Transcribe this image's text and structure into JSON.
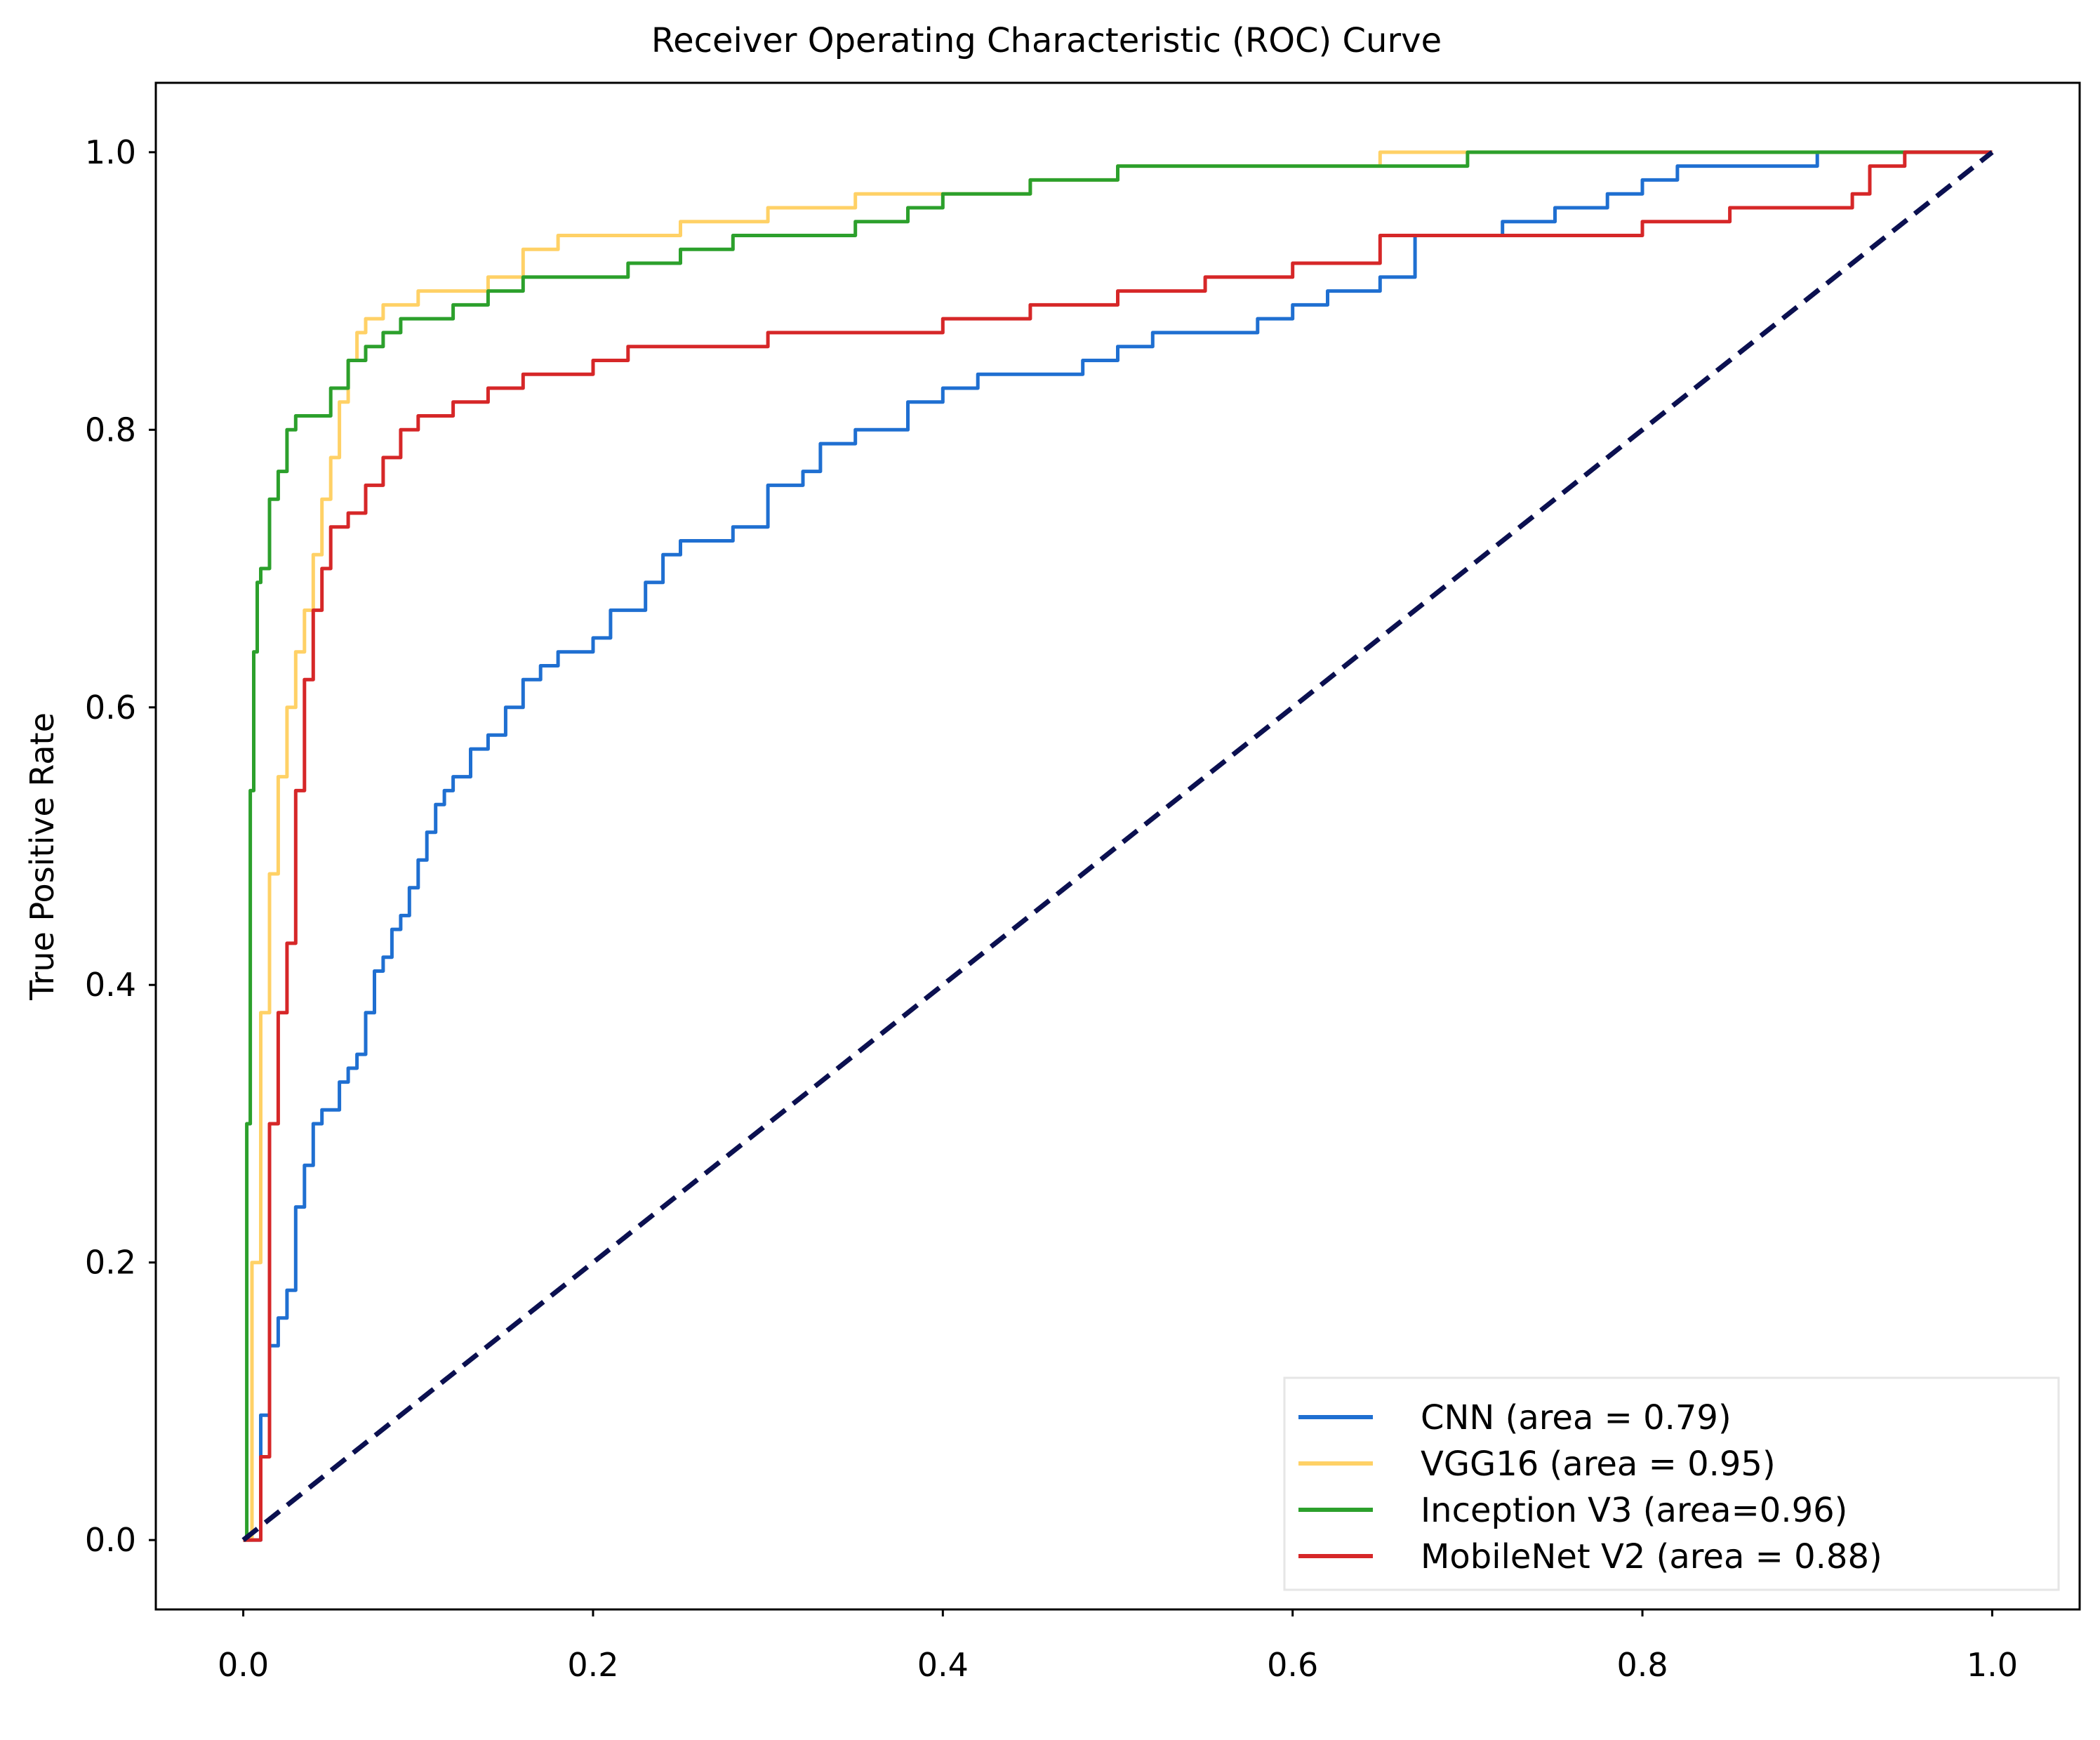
{
  "chart_data": {
    "type": "line",
    "title": "Receiver Operating Characteristic (ROC) Curve",
    "xlabel": "",
    "ylabel": "True Positive Rate",
    "xlim": [
      -0.05,
      1.05
    ],
    "ylim": [
      -0.05,
      1.05
    ],
    "xticks": [
      0.0,
      0.2,
      0.4,
      0.6,
      0.8,
      1.0
    ],
    "yticks": [
      0.0,
      0.2,
      0.4,
      0.6,
      0.8,
      1.0
    ],
    "xtick_labels": [
      "0.0",
      "0.2",
      "0.4",
      "0.6",
      "0.8",
      "1.0"
    ],
    "ytick_labels": [
      "0.0",
      "0.2",
      "0.4",
      "0.6",
      "0.8",
      "1.0"
    ],
    "grid": false,
    "legend_position": "bottom-right",
    "diagonal": {
      "color": "#0b1050",
      "style": "dashed",
      "x": [
        0,
        1
      ],
      "y": [
        0,
        1
      ]
    },
    "series": [
      {
        "name": "CNN (area = 0.79)",
        "color": "#1f6fd1",
        "x": [
          0,
          0.01,
          0.015,
          0.02,
          0.025,
          0.03,
          0.035,
          0.04,
          0.045,
          0.05,
          0.055,
          0.06,
          0.065,
          0.07,
          0.075,
          0.08,
          0.085,
          0.09,
          0.095,
          0.1,
          0.105,
          0.11,
          0.115,
          0.12,
          0.13,
          0.14,
          0.15,
          0.16,
          0.17,
          0.18,
          0.19,
          0.2,
          0.21,
          0.22,
          0.23,
          0.24,
          0.25,
          0.26,
          0.28,
          0.3,
          0.31,
          0.32,
          0.33,
          0.35,
          0.36,
          0.38,
          0.4,
          0.42,
          0.45,
          0.48,
          0.5,
          0.52,
          0.55,
          0.58,
          0.6,
          0.62,
          0.65,
          0.67,
          0.7,
          0.72,
          0.75,
          0.78,
          0.8,
          0.82,
          0.85,
          0.9,
          0.95,
          1.0
        ],
        "y": [
          0,
          0.09,
          0.14,
          0.16,
          0.18,
          0.24,
          0.27,
          0.3,
          0.31,
          0.31,
          0.33,
          0.34,
          0.35,
          0.38,
          0.41,
          0.42,
          0.44,
          0.45,
          0.47,
          0.49,
          0.51,
          0.53,
          0.54,
          0.55,
          0.57,
          0.58,
          0.6,
          0.62,
          0.63,
          0.64,
          0.64,
          0.65,
          0.67,
          0.67,
          0.69,
          0.71,
          0.72,
          0.72,
          0.73,
          0.76,
          0.76,
          0.77,
          0.79,
          0.8,
          0.8,
          0.82,
          0.83,
          0.84,
          0.84,
          0.85,
          0.86,
          0.87,
          0.87,
          0.88,
          0.89,
          0.9,
          0.91,
          0.94,
          0.94,
          0.95,
          0.96,
          0.97,
          0.98,
          0.99,
          0.99,
          1.0,
          1.0,
          1.0
        ]
      },
      {
        "name": "VGG16 (area = 0.95)",
        "color": "#ffd166",
        "x": [
          0,
          0.005,
          0.01,
          0.015,
          0.02,
          0.025,
          0.03,
          0.035,
          0.04,
          0.045,
          0.05,
          0.055,
          0.06,
          0.065,
          0.07,
          0.08,
          0.09,
          0.1,
          0.12,
          0.14,
          0.16,
          0.18,
          0.2,
          0.25,
          0.3,
          0.35,
          0.4,
          0.45,
          0.5,
          0.55,
          0.6,
          0.65,
          0.7,
          0.75,
          0.8,
          0.9,
          1.0
        ],
        "y": [
          0,
          0.2,
          0.38,
          0.48,
          0.55,
          0.6,
          0.64,
          0.67,
          0.71,
          0.75,
          0.78,
          0.82,
          0.85,
          0.87,
          0.88,
          0.89,
          0.89,
          0.9,
          0.9,
          0.91,
          0.93,
          0.94,
          0.94,
          0.95,
          0.96,
          0.97,
          0.97,
          0.98,
          0.99,
          0.99,
          0.99,
          1.0,
          1.0,
          1.0,
          1.0,
          1.0,
          1.0
        ]
      },
      {
        "name": "Inception V3 (area=0.96)",
        "color": "#2ca02c",
        "x": [
          0,
          0.002,
          0.004,
          0.006,
          0.008,
          0.01,
          0.015,
          0.02,
          0.025,
          0.03,
          0.04,
          0.05,
          0.06,
          0.07,
          0.08,
          0.09,
          0.1,
          0.12,
          0.14,
          0.16,
          0.18,
          0.2,
          0.22,
          0.25,
          0.28,
          0.3,
          0.35,
          0.38,
          0.4,
          0.45,
          0.5,
          0.55,
          0.6,
          0.7,
          0.8,
          0.9,
          1.0
        ],
        "y": [
          0,
          0.3,
          0.54,
          0.64,
          0.69,
          0.7,
          0.75,
          0.77,
          0.8,
          0.81,
          0.81,
          0.83,
          0.85,
          0.86,
          0.87,
          0.88,
          0.88,
          0.89,
          0.9,
          0.91,
          0.91,
          0.91,
          0.92,
          0.93,
          0.94,
          0.94,
          0.95,
          0.96,
          0.97,
          0.98,
          0.99,
          0.99,
          0.99,
          1.0,
          1.0,
          1.0,
          1.0
        ]
      },
      {
        "name": "MobileNet V2 (area = 0.88)",
        "color": "#d62728",
        "x": [
          0,
          0.01,
          0.015,
          0.02,
          0.025,
          0.03,
          0.035,
          0.04,
          0.045,
          0.05,
          0.06,
          0.07,
          0.08,
          0.09,
          0.1,
          0.12,
          0.14,
          0.16,
          0.18,
          0.2,
          0.22,
          0.25,
          0.3,
          0.35,
          0.4,
          0.45,
          0.5,
          0.55,
          0.6,
          0.65,
          0.7,
          0.75,
          0.8,
          0.85,
          0.9,
          0.92,
          0.93,
          0.95,
          1.0
        ],
        "y": [
          0,
          0.06,
          0.3,
          0.38,
          0.43,
          0.54,
          0.62,
          0.67,
          0.7,
          0.73,
          0.74,
          0.76,
          0.78,
          0.8,
          0.81,
          0.82,
          0.83,
          0.84,
          0.84,
          0.85,
          0.86,
          0.86,
          0.87,
          0.87,
          0.88,
          0.89,
          0.9,
          0.91,
          0.92,
          0.94,
          0.94,
          0.94,
          0.95,
          0.96,
          0.96,
          0.97,
          0.99,
          1.0,
          1.0
        ]
      }
    ]
  }
}
